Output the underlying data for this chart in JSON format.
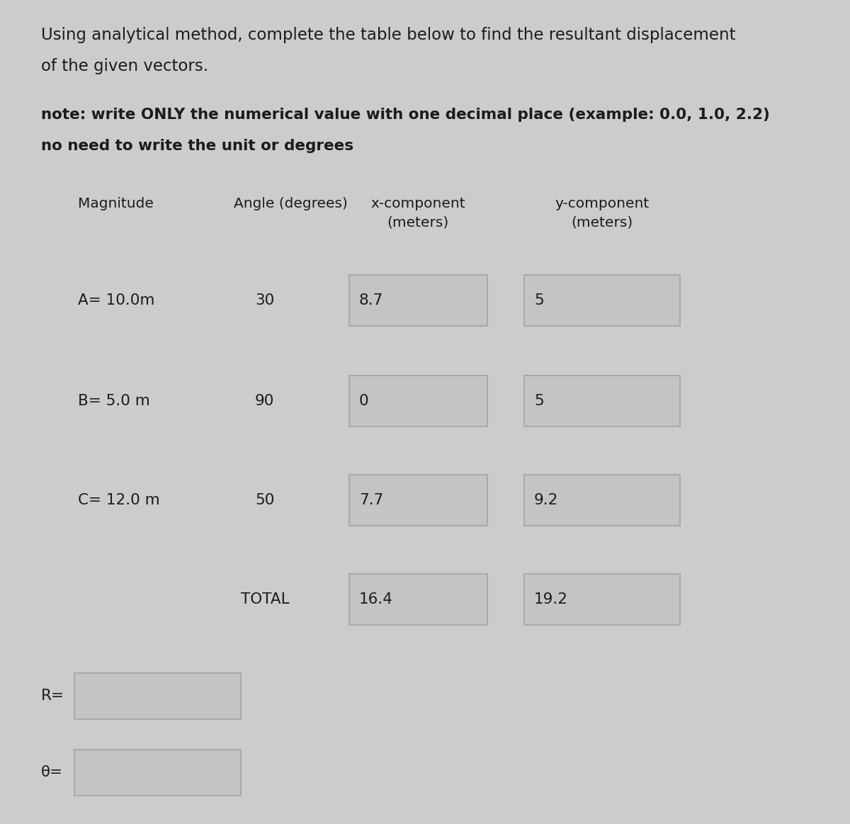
{
  "title_line1": "Using analytical method, complete the table below to find the resultant displacement",
  "title_line2": "of the given vectors.",
  "note_line1": "note: write ONLY the numerical value with one decimal place (example: 0.0, 1.0, 2.2)",
  "note_line2": "no need to write the unit or degrees",
  "col_header_magnitude": "Magnitude",
  "col_header_angle": "Angle (degrees)",
  "col_header_x1": "x-component",
  "col_header_x2": "(meters)",
  "col_header_y1": "y-component",
  "col_header_y2": "(meters)",
  "rows": [
    {
      "label": "A= 10.0m",
      "angle": "30",
      "x_val": "8.7",
      "y_val": "5"
    },
    {
      "label": "B= 5.0 m",
      "angle": "90",
      "x_val": "0",
      "y_val": "5"
    },
    {
      "label": "C= 12.0 m",
      "angle": "50",
      "x_val": "7.7",
      "y_val": "9.2"
    }
  ],
  "total_label": "TOTAL",
  "total_x": "16.4",
  "total_y": "19.2",
  "result_R_label": "R=",
  "result_theta_label": "θ=",
  "bg_color": "#cccccc",
  "box_face_color": "#c4c4c4",
  "box_edge_color": "#aaaaaa",
  "text_color": "#1c1c1c",
  "title_fontsize": 16.5,
  "note_fontsize": 15.5,
  "header_fontsize": 14.5,
  "row_fontsize": 15.5
}
